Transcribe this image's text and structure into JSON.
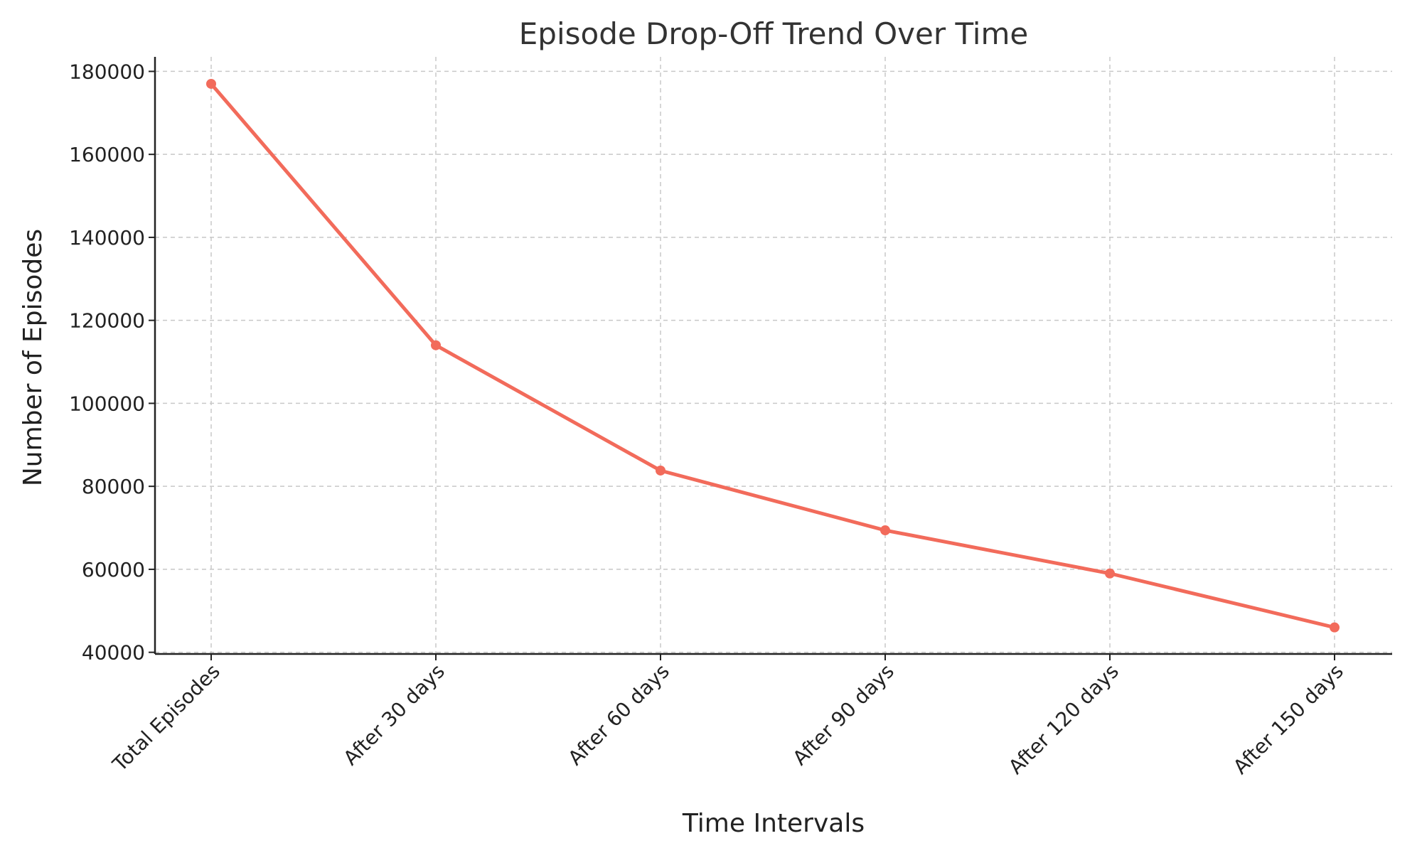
{
  "chart_data": {
    "type": "line",
    "title": "Episode Drop-Off Trend Over Time",
    "xlabel": "Time Intervals",
    "ylabel": "Number of Episodes",
    "categories": [
      "Total Episodes",
      "After 30 days",
      "After 60 days",
      "After 90 days",
      "After 120 days",
      "After 150 days"
    ],
    "values": [
      177000,
      114000,
      83800,
      69400,
      59000,
      46000
    ],
    "ylim": [
      39600,
      183500
    ],
    "yticks": [
      40000,
      60000,
      80000,
      100000,
      120000,
      140000,
      160000,
      180000
    ],
    "ytick_labels": [
      "40000",
      "60000",
      "80000",
      "100000",
      "120000",
      "140000",
      "160000",
      "180000"
    ],
    "grid": true,
    "line_color": "#f26b5b",
    "marker": "circle",
    "legend": "none"
  }
}
